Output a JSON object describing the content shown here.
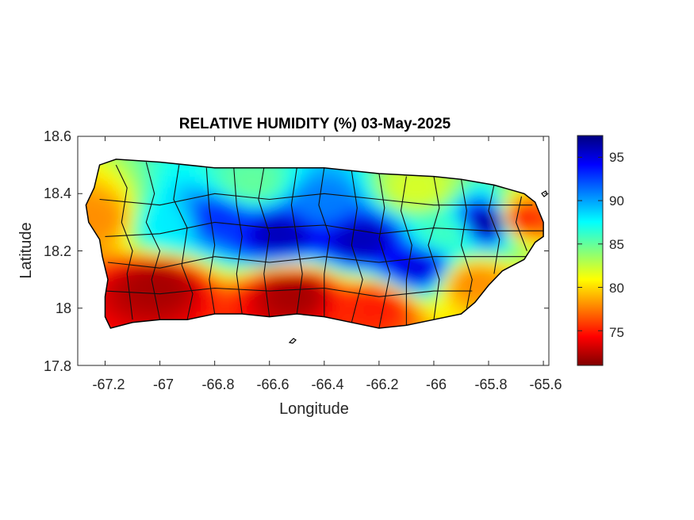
{
  "title": "RELATIVE HUMIDITY (%) 03-May-2025",
  "xlabel": "Longitude",
  "ylabel": "Latitude",
  "x_ticks": [
    "-67.2",
    "-67",
    "-66.8",
    "-66.6",
    "-66.4",
    "-66.2",
    "-66",
    "-65.8",
    "-65.6"
  ],
  "y_ticks": [
    "18.6",
    "18.4",
    "18.2",
    "18",
    "17.8"
  ],
  "colorbar": {
    "ticks": [
      "95",
      "90",
      "85",
      "80",
      "75"
    ],
    "min": 71,
    "max": 97.5,
    "colormap": "jet",
    "colors": [
      "#800000",
      "#ff0000",
      "#ff8000",
      "#ffff00",
      "#80ff80",
      "#00ffff",
      "#0080ff",
      "#0000ff",
      "#000080"
    ]
  },
  "chart_data": {
    "type": "heatmap",
    "title": "RELATIVE HUMIDITY (%) 03-May-2025",
    "xlabel": "Longitude",
    "ylabel": "Latitude",
    "xlim": [
      -67.3,
      -65.58
    ],
    "ylim": [
      17.8,
      18.6
    ],
    "x_ticks": [
      -67.2,
      -67,
      -66.8,
      -66.6,
      -66.4,
      -66.2,
      -66,
      -65.8,
      -65.6
    ],
    "y_ticks": [
      18.6,
      18.4,
      18.2,
      18,
      17.8
    ],
    "value_range": [
      71,
      97.5
    ],
    "colorbar_ticks": [
      95,
      90,
      85,
      80,
      75
    ],
    "grid": false,
    "region": "Puerto Rico, with municipality boundaries",
    "island_outline": [
      [
        -67.22,
        18.5
      ],
      [
        -67.16,
        18.52
      ],
      [
        -67.0,
        18.51
      ],
      [
        -66.8,
        18.49
      ],
      [
        -66.6,
        18.49
      ],
      [
        -66.4,
        18.49
      ],
      [
        -66.2,
        18.47
      ],
      [
        -66.0,
        18.46
      ],
      [
        -65.9,
        18.45
      ],
      [
        -65.78,
        18.43
      ],
      [
        -65.67,
        18.4
      ],
      [
        -65.63,
        18.37
      ],
      [
        -65.6,
        18.3
      ],
      [
        -65.6,
        18.25
      ],
      [
        -65.63,
        18.23
      ],
      [
        -65.67,
        18.17
      ],
      [
        -65.75,
        18.13
      ],
      [
        -65.8,
        18.08
      ],
      [
        -65.85,
        18.02
      ],
      [
        -65.9,
        17.98
      ],
      [
        -66.0,
        17.96
      ],
      [
        -66.1,
        17.94
      ],
      [
        -66.2,
        17.93
      ],
      [
        -66.3,
        17.95
      ],
      [
        -66.4,
        17.97
      ],
      [
        -66.5,
        17.98
      ],
      [
        -66.6,
        17.97
      ],
      [
        -66.7,
        17.98
      ],
      [
        -66.8,
        17.98
      ],
      [
        -66.9,
        17.96
      ],
      [
        -67.0,
        17.96
      ],
      [
        -67.1,
        17.95
      ],
      [
        -67.18,
        17.93
      ],
      [
        -67.2,
        17.97
      ],
      [
        -67.2,
        18.04
      ],
      [
        -67.19,
        18.1
      ],
      [
        -67.21,
        18.18
      ],
      [
        -67.22,
        18.24
      ],
      [
        -67.26,
        18.3
      ],
      [
        -67.27,
        18.36
      ],
      [
        -67.24,
        18.42
      ],
      [
        -67.22,
        18.5
      ]
    ],
    "humidity_pattern": [
      {
        "lon": -66.55,
        "lat": 18.25,
        "value": 96
      },
      {
        "lon": -66.25,
        "lat": 18.23,
        "value": 96
      },
      {
        "lon": -65.78,
        "lat": 18.29,
        "value": 97
      },
      {
        "lon": -66.05,
        "lat": 18.13,
        "value": 95
      },
      {
        "lon": -66.78,
        "lat": 18.3,
        "value": 93
      },
      {
        "lon": -66.4,
        "lat": 18.35,
        "value": 91
      },
      {
        "lon": -66.95,
        "lat": 18.28,
        "value": 88
      },
      {
        "lon": -65.95,
        "lat": 18.25,
        "value": 86
      },
      {
        "lon": -66.65,
        "lat": 18.42,
        "value": 85
      },
      {
        "lon": -66.05,
        "lat": 18.4,
        "value": 82
      },
      {
        "lon": -65.68,
        "lat": 18.3,
        "value": 75
      },
      {
        "lon": -67.22,
        "lat": 18.3,
        "value": 78
      },
      {
        "lon": -67.0,
        "lat": 18.07,
        "value": 72
      },
      {
        "lon": -66.5,
        "lat": 18.04,
        "value": 72
      },
      {
        "lon": -66.2,
        "lat": 18.0,
        "value": 75
      },
      {
        "lon": -65.85,
        "lat": 18.08,
        "value": 78
      }
    ]
  }
}
